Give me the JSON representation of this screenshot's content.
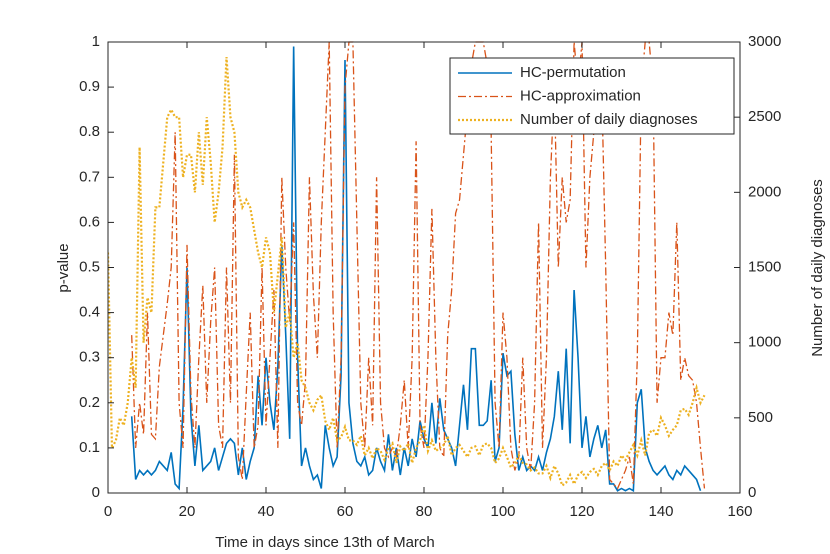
{
  "chart_data": {
    "type": "line",
    "xlabel": "Time in days since 13th of March",
    "ylabel": "p-value",
    "y2label": "Number of daily diagnoses",
    "xlim": [
      0,
      160
    ],
    "xticks": [
      0,
      20,
      40,
      60,
      80,
      100,
      120,
      140,
      160
    ],
    "ylim": [
      0,
      1
    ],
    "yticks": [
      0,
      0.1,
      0.2,
      0.3,
      0.4,
      0.5,
      0.6,
      0.7,
      0.8,
      0.9,
      1
    ],
    "y2lim": [
      0,
      3000
    ],
    "y2ticks": [
      0,
      500,
      1000,
      1500,
      2000,
      2500,
      3000
    ],
    "legend": "northeast",
    "grid": false,
    "x": [
      0,
      1,
      2,
      3,
      4,
      5,
      6,
      7,
      8,
      9,
      10,
      11,
      12,
      13,
      14,
      15,
      16,
      17,
      18,
      19,
      20,
      21,
      22,
      23,
      24,
      25,
      26,
      27,
      28,
      29,
      30,
      31,
      32,
      33,
      34,
      35,
      36,
      37,
      38,
      39,
      40,
      41,
      42,
      43,
      44,
      45,
      46,
      47,
      48,
      49,
      50,
      51,
      52,
      53,
      54,
      55,
      56,
      57,
      58,
      59,
      60,
      61,
      62,
      63,
      64,
      65,
      66,
      67,
      68,
      69,
      70,
      71,
      72,
      73,
      74,
      75,
      76,
      77,
      78,
      79,
      80,
      81,
      82,
      83,
      84,
      85,
      86,
      87,
      88,
      89,
      90,
      91,
      92,
      93,
      94,
      95,
      96,
      97,
      98,
      99,
      100,
      101,
      102,
      103,
      104,
      105,
      106,
      107,
      108,
      109,
      110,
      111,
      112,
      113,
      114,
      115,
      116,
      117,
      118,
      119,
      120,
      121,
      122,
      123,
      124,
      125,
      126,
      127,
      128,
      129,
      130,
      131,
      132,
      133,
      134,
      135,
      136,
      137,
      138,
      139,
      140,
      141,
      142,
      143,
      144,
      145,
      146,
      147,
      148,
      149,
      150,
      151
    ],
    "series": [
      {
        "name": "HC-permutation",
        "color": "#0072bd",
        "line_style": "solid",
        "values": [
          null,
          null,
          null,
          null,
          null,
          null,
          0.17,
          0.03,
          0.05,
          0.04,
          0.05,
          0.04,
          0.05,
          0.07,
          0.06,
          0.05,
          0.09,
          0.02,
          0.01,
          0.19,
          0.5,
          0.17,
          0.06,
          0.15,
          0.05,
          0.06,
          0.07,
          0.1,
          0.05,
          0.08,
          0.11,
          0.12,
          0.11,
          0.04,
          0.1,
          0.03,
          0.07,
          0.1,
          0.26,
          0.15,
          0.3,
          0.2,
          0.14,
          0.28,
          0.55,
          0.35,
          0.12,
          0.99,
          0.3,
          0.06,
          0.1,
          0.06,
          0.03,
          0.04,
          0.01,
          0.15,
          0.1,
          0.06,
          0.08,
          0.26,
          0.96,
          0.2,
          0.11,
          0.07,
          0.06,
          0.08,
          0.04,
          0.05,
          0.1,
          0.07,
          0.05,
          0.13,
          0.05,
          0.1,
          0.04,
          0.1,
          0.06,
          0.12,
          0.08,
          0.16,
          0.12,
          0.1,
          0.2,
          0.11,
          0.21,
          0.14,
          0.12,
          0.1,
          0.06,
          0.15,
          0.24,
          0.14,
          0.32,
          0.32,
          0.15,
          0.15,
          0.16,
          0.25,
          0.07,
          0.1,
          0.31,
          0.26,
          0.27,
          0.13,
          0.05,
          0.08,
          0.05,
          0.06,
          0.05,
          0.08,
          0.05,
          0.09,
          0.12,
          0.17,
          0.27,
          0.14,
          0.32,
          0.11,
          0.45,
          0.3,
          0.1,
          0.17,
          0.08,
          0.12,
          0.15,
          0.1,
          0.14,
          0.02,
          0.02,
          0.005,
          0.01,
          0.005,
          0.01,
          0.005,
          0.2,
          0.23,
          0.1,
          0.07,
          0.05,
          0.04,
          0.05,
          0.06,
          0.04,
          0.03,
          0.05,
          0.04,
          0.06,
          0.05,
          0.04,
          0.03,
          0.005,
          null
        ]
      },
      {
        "name": "HC-approximation",
        "color": "#d95319",
        "line_style": "dashdot",
        "values": [
          null,
          null,
          null,
          null,
          null,
          null,
          0.35,
          0.1,
          0.2,
          0.13,
          0.4,
          0.13,
          0.12,
          0.28,
          0.35,
          0.42,
          0.5,
          0.8,
          0.2,
          0.1,
          0.55,
          0.22,
          0.1,
          0.3,
          0.46,
          0.2,
          0.38,
          0.5,
          0.15,
          0.1,
          0.5,
          0.2,
          0.75,
          0.08,
          0.03,
          0.22,
          0.4,
          0.1,
          0.15,
          0.5,
          0.15,
          0.3,
          0.45,
          0.1,
          0.7,
          0.5,
          0.38,
          0.6,
          0.2,
          0.15,
          0.25,
          0.7,
          0.44,
          0.3,
          0.6,
          0.8,
          1,
          0.4,
          0.1,
          0.3,
          0.9,
          1,
          1,
          0.6,
          0.2,
          0.1,
          0.3,
          0.15,
          0.7,
          0.2,
          0.1,
          0.08,
          0.1,
          0.08,
          0.15,
          0.25,
          0.1,
          0.3,
          0.78,
          0.15,
          0.1,
          0.3,
          0.63,
          0.3,
          0.1,
          0.08,
          0.35,
          0.45,
          0.62,
          0.65,
          0.75,
          0.85,
          0.95,
          1,
          1,
          1,
          0.95,
          0.8,
          0.2,
          0.1,
          0.4,
          0.3,
          0.1,
          0.05,
          0.08,
          0.3,
          0.1,
          0.05,
          0.2,
          0.6,
          0.1,
          0.3,
          0.7,
          0.9,
          0.5,
          0.7,
          0.6,
          0.65,
          1,
          0.9,
          1,
          0.5,
          0.7,
          0.8,
          0.85,
          0.9,
          0.5,
          0.03,
          0.02,
          0.01,
          0.03,
          0.05,
          0.08,
          0.02,
          0.3,
          0.9,
          1,
          1,
          0.9,
          0.2,
          0.3,
          0.3,
          0.4,
          0.35,
          0.6,
          0.25,
          0.3,
          0.26,
          0.25,
          0.2,
          0.1,
          0.01
        ]
      },
      {
        "name": "Number of daily diagnoses",
        "color": "#edb120",
        "line_style": "dotted",
        "axis": "y2",
        "values": [
          1600,
          300,
          350,
          500,
          450,
          600,
          900,
          700,
          2300,
          1000,
          1300,
          1200,
          1900,
          1900,
          2200,
          2500,
          2550,
          2500,
          2500,
          2100,
          2250,
          2250,
          2000,
          2400,
          2050,
          2500,
          2200,
          1800,
          2000,
          2300,
          2900,
          2500,
          2400,
          2000,
          1900,
          1950,
          1900,
          1750,
          1600,
          1500,
          1700,
          1600,
          1200,
          1450,
          1700,
          1100,
          1200,
          900,
          1000,
          750,
          700,
          600,
          550,
          620,
          650,
          480,
          420,
          500,
          350,
          370,
          440,
          350,
          350,
          320,
          380,
          250,
          300,
          230,
          300,
          280,
          220,
          300,
          330,
          200,
          310,
          280,
          330,
          200,
          300,
          350,
          450,
          280,
          350,
          280,
          300,
          320,
          380,
          250,
          300,
          320,
          280,
          240,
          300,
          310,
          250,
          320,
          330,
          300,
          200,
          230,
          300,
          240,
          170,
          200,
          250,
          200,
          190,
          150,
          170,
          130,
          130,
          180,
          100,
          180,
          130,
          50,
          70,
          120,
          60,
          120,
          140,
          100,
          140,
          160,
          120,
          180,
          200,
          150,
          210,
          180,
          250,
          220,
          270,
          320,
          250,
          350,
          250,
          400,
          420,
          380,
          500,
          450,
          380,
          420,
          450,
          550,
          560,
          520,
          600,
          700,
          600,
          650
        ]
      }
    ]
  }
}
